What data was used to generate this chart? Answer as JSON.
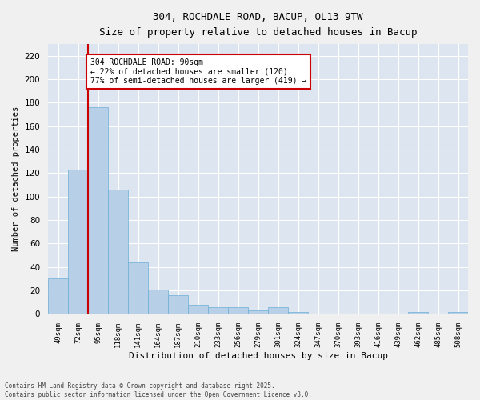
{
  "title_line1": "304, ROCHDALE ROAD, BACUP, OL13 9TW",
  "title_line2": "Size of property relative to detached houses in Bacup",
  "xlabel": "Distribution of detached houses by size in Bacup",
  "ylabel": "Number of detached properties",
  "categories": [
    "49sqm",
    "72sqm",
    "95sqm",
    "118sqm",
    "141sqm",
    "164sqm",
    "187sqm",
    "210sqm",
    "233sqm",
    "256sqm",
    "279sqm",
    "301sqm",
    "324sqm",
    "347sqm",
    "370sqm",
    "393sqm",
    "416sqm",
    "439sqm",
    "462sqm",
    "485sqm",
    "508sqm"
  ],
  "values": [
    30,
    123,
    176,
    106,
    44,
    21,
    16,
    8,
    6,
    6,
    3,
    6,
    2,
    0,
    0,
    0,
    0,
    0,
    2,
    0,
    2
  ],
  "bar_color": "#b8cfe8",
  "bar_edge_color": "#6baed6",
  "plot_bg_color": "#dde6f0",
  "fig_bg_color": "#f0f0f0",
  "grid_color": "#ffffff",
  "vline_color": "#cc0000",
  "vline_x_index": 1.5,
  "annotation_text": "304 ROCHDALE ROAD: 90sqm\n← 22% of detached houses are smaller (120)\n77% of semi-detached houses are larger (419) →",
  "annotation_box_edgecolor": "#cc0000",
  "footer_line1": "Contains HM Land Registry data © Crown copyright and database right 2025.",
  "footer_line2": "Contains public sector information licensed under the Open Government Licence v3.0.",
  "ylim": [
    0,
    230
  ],
  "yticks": [
    0,
    20,
    40,
    60,
    80,
    100,
    120,
    140,
    160,
    180,
    200,
    220
  ]
}
